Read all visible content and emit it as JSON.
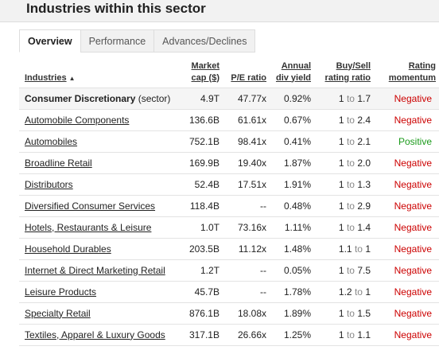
{
  "header": {
    "title": "Industries within this sector"
  },
  "tabs": [
    {
      "label": "Overview"
    },
    {
      "label": "Performance"
    },
    {
      "label": "Advances/Declines"
    }
  ],
  "table": {
    "columns": {
      "industries": "Industries",
      "market_cap_1": "Market",
      "market_cap_2": "cap ($)",
      "pe": "P/E ratio",
      "div_1": "Annual",
      "div_2": "div yield",
      "buysell_1": "Buy/Sell",
      "buysell_2": "rating ratio",
      "rating_1": "Rating",
      "rating_2": "momentum"
    },
    "sort_indicator": "▲",
    "to_word": "to",
    "sector_suffix": "(sector)",
    "rows": [
      {
        "name": "Consumer Discretionary",
        "cap": "4.9T",
        "pe": "47.77x",
        "div": "0.92%",
        "buy": "1",
        "sell": "1.7",
        "momentum": "Negative"
      },
      {
        "name": "Automobile Components",
        "cap": "136.6B",
        "pe": "61.61x",
        "div": "0.67%",
        "buy": "1",
        "sell": "2.4",
        "momentum": "Negative"
      },
      {
        "name": "Automobiles",
        "cap": "752.1B",
        "pe": "98.41x",
        "div": "0.41%",
        "buy": "1",
        "sell": "2.1",
        "momentum": "Positive"
      },
      {
        "name": "Broadline Retail",
        "cap": "169.9B",
        "pe": "19.40x",
        "div": "1.87%",
        "buy": "1",
        "sell": "2.0",
        "momentum": "Negative"
      },
      {
        "name": "Distributors",
        "cap": "52.4B",
        "pe": "17.51x",
        "div": "1.91%",
        "buy": "1",
        "sell": "1.3",
        "momentum": "Negative"
      },
      {
        "name": "Diversified Consumer Services",
        "cap": "118.4B",
        "pe": "--",
        "div": "0.48%",
        "buy": "1",
        "sell": "2.9",
        "momentum": "Negative"
      },
      {
        "name": "Hotels, Restaurants & Leisure",
        "cap": "1.0T",
        "pe": "73.16x",
        "div": "1.11%",
        "buy": "1",
        "sell": "1.4",
        "momentum": "Negative"
      },
      {
        "name": "Household Durables",
        "cap": "203.5B",
        "pe": "11.12x",
        "div": "1.48%",
        "buy": "1.1",
        "sell": "1",
        "momentum": "Negative"
      },
      {
        "name": "Internet & Direct Marketing Retail",
        "cap": "1.2T",
        "pe": "--",
        "div": "0.05%",
        "buy": "1",
        "sell": "7.5",
        "momentum": "Negative"
      },
      {
        "name": "Leisure Products",
        "cap": "45.7B",
        "pe": "--",
        "div": "1.78%",
        "buy": "1.2",
        "sell": "1",
        "momentum": "Negative"
      },
      {
        "name": "Specialty Retail",
        "cap": "876.1B",
        "pe": "18.08x",
        "div": "1.89%",
        "buy": "1",
        "sell": "1.5",
        "momentum": "Negative"
      },
      {
        "name": "Textiles, Apparel & Luxury Goods",
        "cap": "317.1B",
        "pe": "26.66x",
        "div": "1.25%",
        "buy": "1",
        "sell": "1.1",
        "momentum": "Negative"
      }
    ]
  },
  "colors": {
    "negative": "#cc0000",
    "positive": "#1a9a1a",
    "header_bg": "#f2f2f2"
  }
}
